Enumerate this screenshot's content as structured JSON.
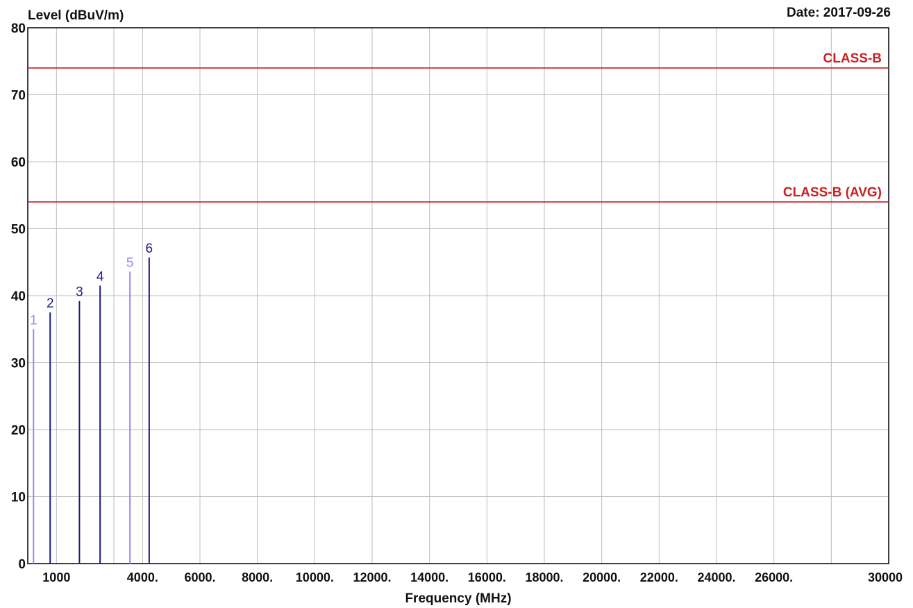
{
  "header": {
    "ylabel": "Level (dBuV/m)",
    "date": "Date: 2017-09-26"
  },
  "chart_data": {
    "type": "bar",
    "xlabel": "Frequency (MHz)",
    "ylabel": "Level (dBuV/m)",
    "xlim": [
      0,
      30000
    ],
    "ylim": [
      0,
      80
    ],
    "grid": true,
    "y_ticks": [
      {
        "value": 0,
        "label": "0"
      },
      {
        "value": 10,
        "label": "10"
      },
      {
        "value": 20,
        "label": "20"
      },
      {
        "value": 30,
        "label": "30"
      },
      {
        "value": 40,
        "label": "40"
      },
      {
        "value": 50,
        "label": "50"
      },
      {
        "value": 60,
        "label": "60"
      },
      {
        "value": 70,
        "label": "70"
      },
      {
        "value": 80,
        "label": "80"
      }
    ],
    "x_ticks": [
      {
        "value": 1000,
        "label": "1000"
      },
      {
        "value": 4000,
        "label": "4000."
      },
      {
        "value": 6000,
        "label": "6000."
      },
      {
        "value": 8000,
        "label": "8000."
      },
      {
        "value": 10000,
        "label": "10000."
      },
      {
        "value": 12000,
        "label": "12000."
      },
      {
        "value": 14000,
        "label": "14000."
      },
      {
        "value": 16000,
        "label": "16000."
      },
      {
        "value": 18000,
        "label": "18000."
      },
      {
        "value": 20000,
        "label": "20000."
      },
      {
        "value": 22000,
        "label": "22000."
      },
      {
        "value": 24000,
        "label": "24000."
      },
      {
        "value": 26000,
        "label": "26000."
      },
      {
        "value": 30000,
        "label": "30000"
      }
    ],
    "x_gridlines": [
      0,
      1000,
      3000,
      4000,
      6000,
      8000,
      10000,
      12000,
      14000,
      16000,
      18000,
      20000,
      22000,
      24000,
      26000,
      28000,
      30000
    ],
    "limit_lines": [
      {
        "name": "CLASS-B",
        "value": 74,
        "color": "#cc1f1f"
      },
      {
        "name": "CLASS-B (AVG)",
        "value": 54,
        "color": "#cc1f1f"
      }
    ],
    "markers": [
      {
        "label": "1",
        "x": 200,
        "y": 35,
        "color": "#8c8cf0"
      },
      {
        "label": "2",
        "x": 780,
        "y": 37.5,
        "color": "#1a1a8c"
      },
      {
        "label": "3",
        "x": 1800,
        "y": 39.2,
        "color": "#1a1a8c"
      },
      {
        "label": "4",
        "x": 2520,
        "y": 41.5,
        "color": "#1a1a8c"
      },
      {
        "label": "5",
        "x": 3560,
        "y": 43.6,
        "color": "#8c8cf0"
      },
      {
        "label": "6",
        "x": 4230,
        "y": 45.7,
        "color": "#1a1a8c"
      }
    ]
  }
}
